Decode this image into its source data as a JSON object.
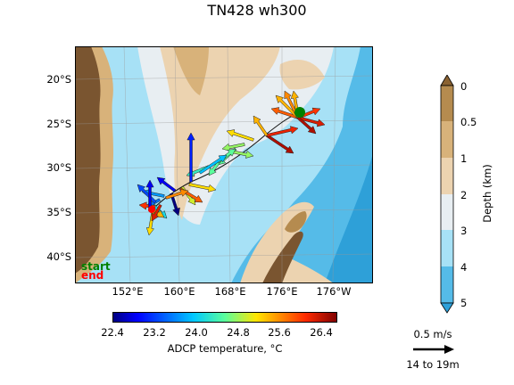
{
  "title": "TN428 wh300",
  "map": {
    "lat_labels": [
      "20°S",
      "25°S",
      "30°S",
      "35°S",
      "40°S"
    ],
    "lon_labels": [
      "152°E",
      "160°E",
      "168°E",
      "176°E",
      "176°W"
    ],
    "colors": {
      "land_dark": "#7a5530",
      "land_mid": "#b58b4f",
      "land_light": "#d8b27a",
      "shelf": "#ecd3b0",
      "depth_2_3": "#e8eef2",
      "depth_3_4": "#a7e1f6",
      "depth_4_5": "#55bbe8",
      "depth_5": "#2ea0d8"
    },
    "track_legend": {
      "start": "start",
      "end": "end",
      "start_color": "#008000",
      "end_color": "#ff0000"
    }
  },
  "temp_colorbar": {
    "ticks": [
      "22.4",
      "23.2",
      "24.0",
      "24.8",
      "25.6",
      "26.4"
    ],
    "label": "ADCP temperature, °C",
    "min": 22.4,
    "max": 26.7
  },
  "depth_colorbar": {
    "ticks": [
      "0",
      "0.5",
      "1",
      "2",
      "3",
      "4",
      "5"
    ],
    "label": "Depth (km)"
  },
  "scale": {
    "speed_label": "0.5 m/s",
    "depth_range": "14 to 19m"
  }
}
